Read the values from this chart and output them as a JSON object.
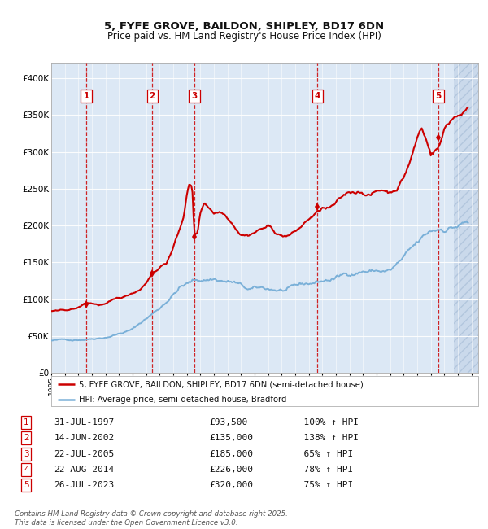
{
  "title_line1": "5, FYFE GROVE, BAILDON, SHIPLEY, BD17 6DN",
  "title_line2": "Price paid vs. HM Land Registry's House Price Index (HPI)",
  "xlim_left": 1995.0,
  "xlim_right": 2026.5,
  "ylim_bottom": 0,
  "ylim_top": 420000,
  "yticks": [
    0,
    50000,
    100000,
    150000,
    200000,
    250000,
    300000,
    350000,
    400000
  ],
  "ytick_labels": [
    "£0",
    "£50K",
    "£100K",
    "£150K",
    "£200K",
    "£250K",
    "£300K",
    "£350K",
    "£400K"
  ],
  "fig_bg": "#ffffff",
  "plot_bg": "#dce8f5",
  "grid_color": "#ffffff",
  "sale_color": "#cc0000",
  "hpi_color": "#7ab0d8",
  "dashed_color": "#cc0000",
  "hatch_start": 2024.67,
  "transactions": [
    {
      "num": 1,
      "date_label": "31-JUL-1997",
      "price": 93500,
      "year": 1997.58,
      "pct": "100%",
      "dir": "↑"
    },
    {
      "num": 2,
      "date_label": "14-JUN-2002",
      "price": 135000,
      "year": 2002.45,
      "pct": "138%",
      "dir": "↑"
    },
    {
      "num": 3,
      "date_label": "22-JUL-2005",
      "price": 185000,
      "year": 2005.56,
      "pct": "65%",
      "dir": "↑"
    },
    {
      "num": 4,
      "date_label": "22-AUG-2014",
      "price": 226000,
      "year": 2014.64,
      "pct": "78%",
      "dir": "↑"
    },
    {
      "num": 5,
      "date_label": "26-JUL-2023",
      "price": 320000,
      "year": 2023.56,
      "pct": "75%",
      "dir": "↑"
    }
  ],
  "legend_label_red": "5, FYFE GROVE, BAILDON, SHIPLEY, BD17 6DN (semi-detached house)",
  "legend_label_blue": "HPI: Average price, semi-detached house, Bradford",
  "footer": "Contains HM Land Registry data © Crown copyright and database right 2025.\nThis data is licensed under the Open Government Licence v3.0."
}
